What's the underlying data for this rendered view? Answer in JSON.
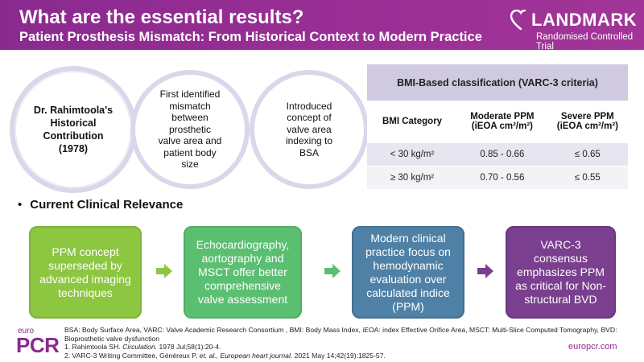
{
  "header": {
    "title": "What are the essential results?",
    "subtitle": "Patient Prosthesis Mismatch: From Historical Context to Modern Practice"
  },
  "logo": {
    "brand": "LANDMARK",
    "tagline": "Randomised Controlled Trial"
  },
  "history": {
    "contribution": [
      "Dr. Rahimtoola's",
      "Historical",
      "Contribution",
      "(1978)"
    ],
    "first_identified": [
      "First identified",
      "mismatch",
      "between",
      "prosthetic",
      "valve area and",
      "patient body",
      "size"
    ],
    "introduced": [
      "Introduced",
      "concept of",
      "valve area",
      "indexing to",
      "BSA"
    ]
  },
  "table": {
    "title": "BMI-Based classification (VARC-3 criteria)",
    "headers": [
      "BMI Category",
      "Moderate PPM (iEOA cm²/m²)",
      "Severe PPM (iEOA cm²/m²)"
    ],
    "rows": [
      [
        "< 30 kg/m²",
        "0.85 - 0.66",
        "≤ 0.65"
      ],
      [
        "≥ 30 kg/m²",
        "0.70 - 0.56",
        "≤ 0.55"
      ]
    ]
  },
  "section": {
    "bullet": "•",
    "title": "Current Clinical Relevance"
  },
  "flow": {
    "box1": "PPM concept superseded by advanced imaging techniques",
    "box2": "Echocardiography, aortography and MSCT offer better comprehensive valve assessment",
    "box3": "Modern clinical practice focus on hemodynamic evaluation over calculated indice (PPM)",
    "box4": "VARC-3 consensus emphasizes PPM as critical for Non-structural BVD",
    "colors": [
      "#8dc641",
      "#5bbf72",
      "#4f81a6",
      "#7a3f8e"
    ],
    "arrow_icon": "arrow-right-icon"
  },
  "footer": {
    "logo_euro": "euro",
    "logo_pcr": "PCR",
    "abbreviations": "BSA: Body Surface Area, VARC: Valve Academic Research Consortium , BMI: Body Mass Index, iEOA: index Effective Orifice Area, MSCT: Multi-Slice Computed Tomography, BVD: Bioprosthetic valve dysfunction",
    "ref1_pre": "1. Rahimtoola SH. ",
    "ref1_journal": "Circulation.",
    "ref1_post": " 1978 Jul;58(1):20-4.",
    "ref2_pre": "2. VARC-3 Writing Committee, Généreux P, ",
    "ref2_etal": "et. al., European heart journal.",
    "ref2_post": " 2021 May 14;42(19):1825-57.",
    "site": "europcr.com"
  },
  "colors": {
    "brand_purple": "#8a2a8f",
    "circle_ring": "#dcd6ea",
    "table_header": "#cfcae0"
  }
}
